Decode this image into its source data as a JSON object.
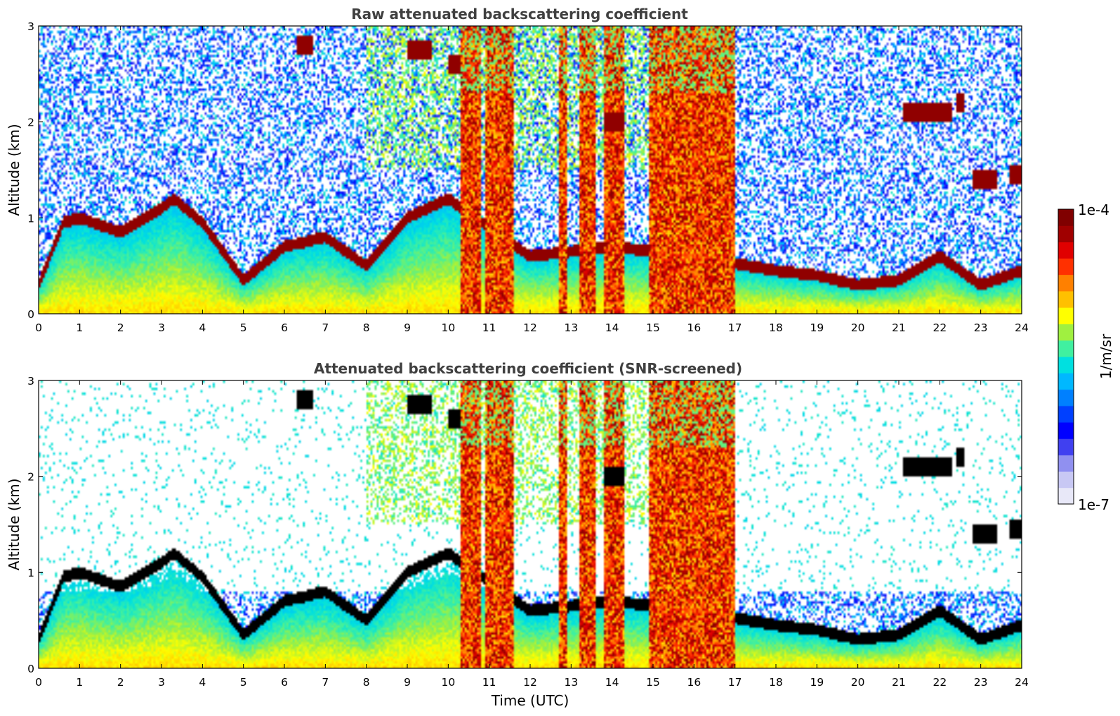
{
  "chart_data": [
    {
      "type": "heatmap",
      "title": "Raw attenuated backscattering coefficient",
      "xlabel": "",
      "ylabel": "Altitude (km)",
      "xlim": [
        0,
        24
      ],
      "ylim": [
        0,
        3
      ],
      "xticks": [
        "0",
        "1",
        "2",
        "3",
        "4",
        "5",
        "6",
        "7",
        "8",
        "9",
        "10",
        "11",
        "12",
        "13",
        "14",
        "15",
        "16",
        "17",
        "18",
        "19",
        "20",
        "21",
        "22",
        "23",
        "24"
      ],
      "yticks": [
        "0",
        "1",
        "2",
        "3"
      ],
      "features": {
        "boundary_layer_top_km": [
          [
            0,
            0.3
          ],
          [
            0.6,
            0.95
          ],
          [
            1,
            1.0
          ],
          [
            2,
            0.85
          ],
          [
            3,
            1.1
          ],
          [
            3.3,
            1.2
          ],
          [
            4,
            0.95
          ],
          [
            5,
            0.35
          ],
          [
            6,
            0.7
          ],
          [
            7,
            0.8
          ],
          [
            8,
            0.5
          ],
          [
            9,
            1.0
          ],
          [
            10,
            1.2
          ],
          [
            12,
            0.6
          ],
          [
            14,
            0.7
          ],
          [
            16,
            0.6
          ],
          [
            18,
            0.45
          ],
          [
            19,
            0.4
          ],
          [
            20,
            0.3
          ],
          [
            21,
            0.35
          ],
          [
            22,
            0.6
          ],
          [
            23,
            0.3
          ],
          [
            24,
            0.45
          ]
        ],
        "elevated_layers_km": [
          {
            "x": [
              6.3,
              6.7
            ],
            "alt": 2.8
          },
          {
            "x": [
              9.0,
              9.6
            ],
            "alt": 2.75
          },
          {
            "x": [
              10.0,
              10.3
            ],
            "alt": 2.6
          },
          {
            "x": [
              13.8,
              14.3
            ],
            "alt": 2.0
          },
          {
            "x": [
              21.1,
              22.3
            ],
            "alt": 2.1
          },
          {
            "x": [
              22.4,
              22.6
            ],
            "alt": 2.2
          },
          {
            "x": [
              22.8,
              23.4
            ],
            "alt": 1.4
          },
          {
            "x": [
              23.7,
              24.0
            ],
            "alt": 1.45
          }
        ],
        "precipitation_columns_utc": [
          [
            10.3,
            10.8
          ],
          [
            10.9,
            11.6
          ],
          [
            12.7,
            12.9
          ],
          [
            13.2,
            13.6
          ],
          [
            13.8,
            14.3
          ],
          [
            14.9,
            15.3
          ],
          [
            15.3,
            17.0
          ]
        ]
      }
    },
    {
      "type": "heatmap",
      "title": "Attenuated backscattering coefficient (SNR-screened)",
      "xlabel": "Time (UTC)",
      "ylabel": "Altitude (km)",
      "xlim": [
        0,
        24
      ],
      "ylim": [
        0,
        3
      ],
      "xticks": [
        "0",
        "1",
        "2",
        "3",
        "4",
        "5",
        "6",
        "7",
        "8",
        "9",
        "10",
        "11",
        "12",
        "13",
        "14",
        "15",
        "16",
        "17",
        "18",
        "19",
        "20",
        "21",
        "22",
        "23",
        "24"
      ],
      "yticks": [
        "0",
        "1",
        "2",
        "3"
      ],
      "screening": "low-SNR pixels removed (white); saturated layers shown in black"
    }
  ],
  "colorbar": {
    "label": "1/m/sr",
    "max_label": "1e-4",
    "min_label": "1e-7",
    "colormap": [
      "#e8e8f8",
      "#c8c8f4",
      "#9090f0",
      "#4040f0",
      "#0000ff",
      "#0040ff",
      "#0080ff",
      "#00b8ff",
      "#00e0e0",
      "#40f0a0",
      "#a0f040",
      "#ffff00",
      "#ffc000",
      "#ff8000",
      "#ff3000",
      "#e00000",
      "#a00000",
      "#800000"
    ]
  }
}
